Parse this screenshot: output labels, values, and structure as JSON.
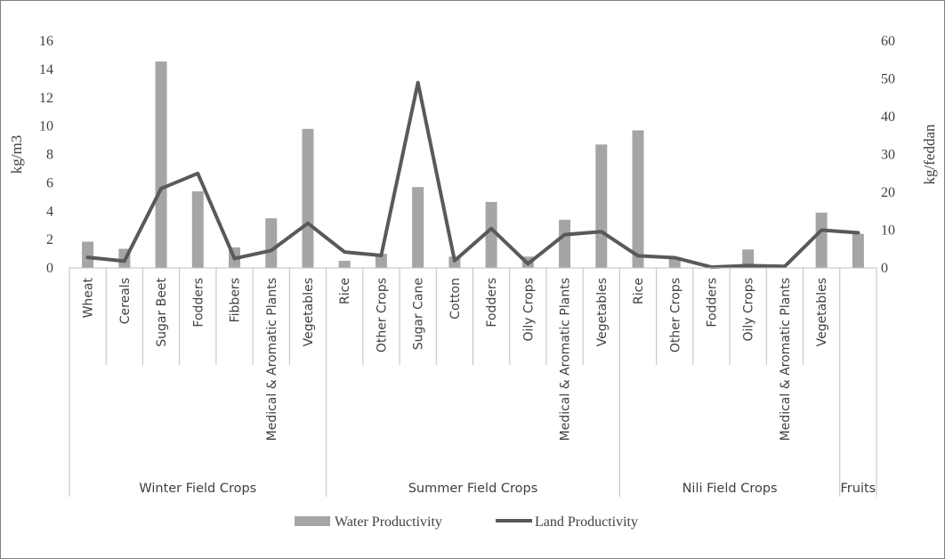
{
  "chart_data": {
    "type": "bar",
    "title": "",
    "ylabel_left": "kg/m3",
    "ylabel_right": "kg/feddan",
    "ylim_left": [
      0,
      16
    ],
    "ylim_right": [
      0,
      60
    ],
    "yticks_left": [
      "0",
      "2",
      "4",
      "6",
      "8",
      "10",
      "12",
      "14",
      "16"
    ],
    "yticks_right": [
      "0",
      "10",
      "20",
      "30",
      "40",
      "50",
      "60"
    ],
    "grid": false,
    "legend_position": "bottom",
    "groups": [
      {
        "name": "Winter Field Crops",
        "count": 7
      },
      {
        "name": "Summer Field Crops",
        "count": 8
      },
      {
        "name": "Nili Field Crops",
        "count": 6
      },
      {
        "name": "Fruits",
        "count": 1
      }
    ],
    "categories": [
      "Wheat",
      "Cereals",
      "Sugar Beet",
      "Fodders",
      "Fibbers",
      "Medical & Aromatic Plants",
      "Vegetables",
      "Rice",
      "Other Crops",
      "Sugar Cane",
      "Cotton",
      "Fodders",
      "Oily Crops",
      "Medical & Aromatic Plants",
      "Vegetables",
      "Rice",
      "Other Crops",
      "Fodders",
      "Oily Crops",
      "Medical & Aromatic Plants",
      "Vegetables",
      ""
    ],
    "series": [
      {
        "name": "Water Productivity",
        "type": "bar",
        "axis": "left",
        "color": "#a5a5a5",
        "values": [
          1.85,
          1.35,
          14.55,
          5.4,
          1.45,
          3.5,
          9.8,
          0.5,
          1.0,
          5.7,
          0.8,
          4.65,
          0.8,
          3.4,
          8.7,
          9.7,
          0.65,
          0.0,
          1.3,
          0.0,
          3.9,
          2.4
        ]
      },
      {
        "name": "Land Productivity",
        "type": "line",
        "axis": "right",
        "color": "#595959",
        "values": [
          2.8,
          1.8,
          21.0,
          25.0,
          2.5,
          4.6,
          11.8,
          4.2,
          3.3,
          49.0,
          1.9,
          10.4,
          1.1,
          8.8,
          9.6,
          3.2,
          2.7,
          0.2,
          0.6,
          0.4,
          10.0,
          9.3
        ]
      }
    ]
  }
}
